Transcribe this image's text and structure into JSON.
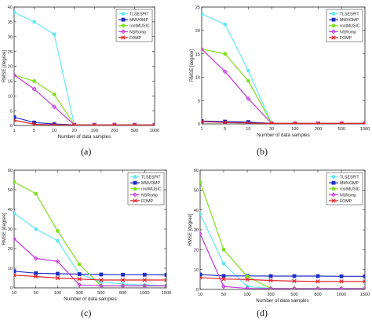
{
  "colors": {
    "series": [
      "#66e8f2",
      "#1f2ec4",
      "#7fe020",
      "#c23bdc",
      "#e0232b"
    ],
    "frame": "#222222"
  },
  "chart_data": [
    {
      "type": "line",
      "letter": "(a)",
      "xlabel": "Number of data samples",
      "ylabel": "RMSE [degree]",
      "x": [
        "1",
        "5",
        "10",
        "20",
        "100",
        "200",
        "500",
        "1000"
      ],
      "ylim": [
        0,
        40
      ],
      "yticks": [
        0,
        5,
        10,
        15,
        20,
        25,
        30,
        35,
        40
      ],
      "grid": false,
      "legend_position": "top-right",
      "series": [
        {
          "name": "TLSESPIT",
          "values": [
            38.2,
            35,
            30.8,
            0.2,
            0.2,
            0.2,
            0.2,
            0.2
          ]
        },
        {
          "name": "MMVOMP",
          "values": [
            2.8,
            1,
            0.5,
            0.2,
            0.2,
            0.2,
            0.2,
            0.2
          ]
        },
        {
          "name": "rootMUSIC",
          "values": [
            17,
            15,
            10.5,
            0.2,
            0.2,
            0.2,
            0.2,
            0.2
          ]
        },
        {
          "name": "NSRomp",
          "values": [
            17,
            12.3,
            6.3,
            0.2,
            0.2,
            0.2,
            0.2,
            0.2
          ]
        },
        {
          "name": "FOMP",
          "values": [
            1.8,
            0.4,
            0.2,
            0.2,
            0.2,
            0.2,
            0.2,
            0.2
          ]
        }
      ]
    },
    {
      "type": "line",
      "letter": "(b)",
      "xlabel": "Number of data samples",
      "ylabel": "RMSE [degree]",
      "x": [
        "1",
        "5",
        "10",
        "30",
        "100",
        "200",
        "500",
        "1000"
      ],
      "ylim": [
        0,
        25
      ],
      "yticks": [
        0,
        5,
        10,
        15,
        20,
        25
      ],
      "grid": false,
      "legend_position": "top-right",
      "series": [
        {
          "name": "TLSESPIT",
          "values": [
            23.5,
            21.3,
            11.4,
            0.1,
            0.1,
            0.1,
            0.1,
            0.1
          ]
        },
        {
          "name": "MMVOMP",
          "values": [
            0.6,
            0.5,
            0.4,
            0.1,
            0.1,
            0.1,
            0.1,
            0.1
          ]
        },
        {
          "name": "rootMUSIC",
          "values": [
            16,
            15,
            9.2,
            0.1,
            0.1,
            0.1,
            0.1,
            0.1
          ]
        },
        {
          "name": "NSRomp",
          "values": [
            16,
            11.2,
            5.4,
            0.1,
            0.1,
            0.1,
            0.1,
            0.1
          ]
        },
        {
          "name": "FOMP",
          "values": [
            0.5,
            0.3,
            0.2,
            0.1,
            0.1,
            0.1,
            0.1,
            0.1
          ]
        }
      ]
    },
    {
      "type": "line",
      "letter": "(c)",
      "xlabel": "Number of data samples",
      "ylabel": "RMSE [degree]",
      "x": [
        "10",
        "50",
        "100",
        "300",
        "500",
        "800",
        "1000",
        "1500"
      ],
      "ylim": [
        0,
        60
      ],
      "yticks": [
        0,
        10,
        20,
        30,
        40,
        50,
        60
      ],
      "grid": false,
      "legend_position": "top-right",
      "series": [
        {
          "name": "TLSESPIT",
          "values": [
            38,
            30,
            24,
            7,
            3,
            2,
            1.5,
            1.2
          ]
        },
        {
          "name": "MMVOMP",
          "values": [
            8.5,
            7.5,
            7.2,
            7,
            6.8,
            6.7,
            6.7,
            6.6
          ]
        },
        {
          "name": "rootMUSIC",
          "values": [
            54,
            48,
            29,
            12,
            1,
            1,
            1,
            1
          ]
        },
        {
          "name": "NSRomp",
          "values": [
            25,
            15,
            13.5,
            1.5,
            1,
            1,
            1,
            1
          ]
        },
        {
          "name": "FOMP",
          "values": [
            6.5,
            5.8,
            5,
            4.5,
            4,
            4,
            4,
            4
          ]
        }
      ]
    },
    {
      "type": "line",
      "letter": "(d)",
      "xlabel": "Number of data samples",
      "ylabel": "RMSE [degree]",
      "x": [
        "10",
        "50",
        "100",
        "300",
        "500",
        "800",
        "1000",
        "1500"
      ],
      "ylim": [
        0,
        60
      ],
      "yticks": [
        0,
        10,
        20,
        30,
        40,
        50,
        60
      ],
      "grid": false,
      "legend_position": "top-right",
      "series": [
        {
          "name": "TLSESPIT",
          "values": [
            38,
            13,
            1.5,
            0.5,
            0.4,
            0.4,
            0.4,
            0.4
          ]
        },
        {
          "name": "MMVOMP",
          "values": [
            7.5,
            6.8,
            6.8,
            6.7,
            6.7,
            6.7,
            6.6,
            6.6
          ]
        },
        {
          "name": "rootMUSIC",
          "values": [
            54,
            20,
            6.5,
            0.5,
            0.5,
            0.5,
            0.5,
            0.5
          ]
        },
        {
          "name": "NSRomp",
          "values": [
            28,
            1.5,
            0.5,
            0.4,
            0.4,
            0.4,
            0.4,
            0.4
          ]
        },
        {
          "name": "FOMP",
          "values": [
            6,
            5.2,
            5,
            4.5,
            4.2,
            4,
            4,
            4
          ]
        }
      ]
    }
  ]
}
